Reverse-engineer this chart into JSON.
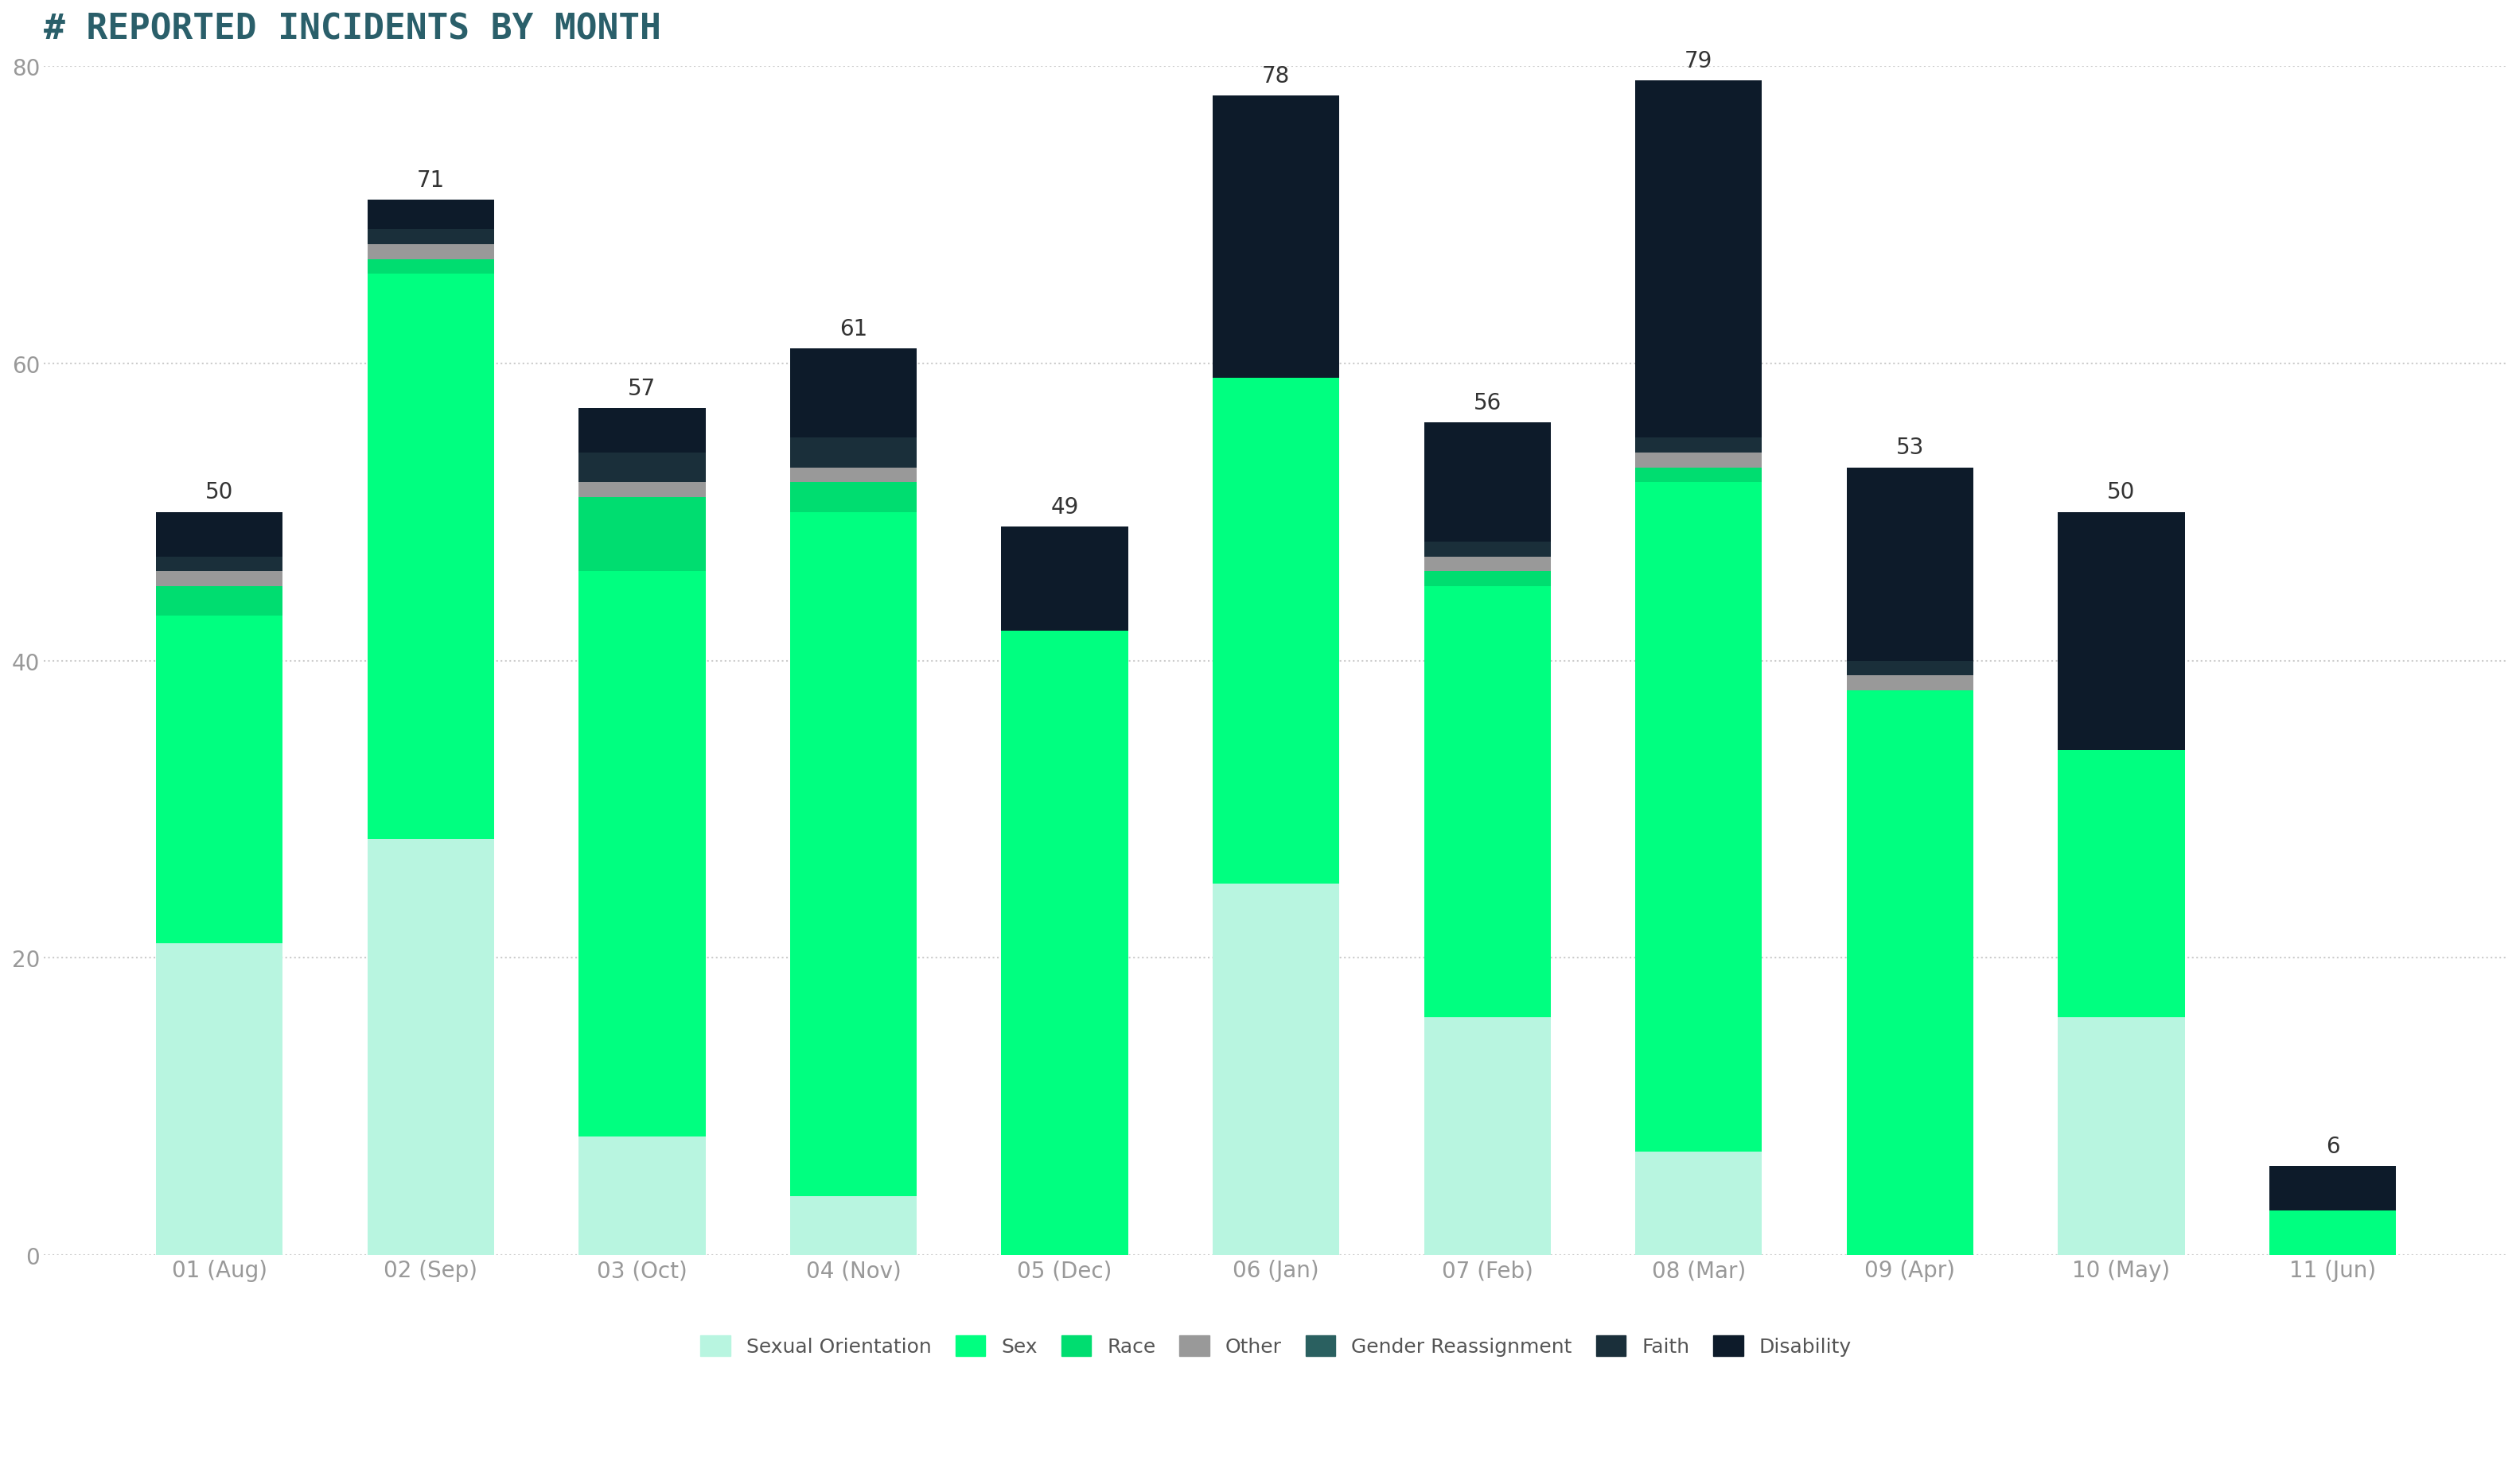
{
  "title": "# REPORTED INCIDENTS BY MONTH",
  "categories": [
    "01 (Aug)",
    "02 (Sep)",
    "03 (Oct)",
    "04 (Nov)",
    "05 (Dec)",
    "06 (Jan)",
    "07 (Feb)",
    "08 (Mar)",
    "09 (Apr)",
    "10 (May)",
    "11 (Jun)"
  ],
  "totals": [
    50,
    71,
    57,
    61,
    49,
    78,
    56,
    79,
    53,
    50,
    6
  ],
  "series": {
    "Sexual Orientation": [
      21,
      28,
      8,
      4,
      0,
      25,
      16,
      7,
      0,
      16,
      0
    ],
    "Sex": [
      22,
      38,
      38,
      46,
      42,
      34,
      29,
      45,
      38,
      18,
      3
    ],
    "Race": [
      2,
      1,
      5,
      2,
      0,
      0,
      1,
      1,
      0,
      0,
      0
    ],
    "Other": [
      1,
      1,
      1,
      1,
      0,
      0,
      1,
      1,
      1,
      0,
      0
    ],
    "Gender Reassignment": [
      0,
      0,
      0,
      0,
      0,
      0,
      0,
      0,
      0,
      0,
      0
    ],
    "Faith": [
      1,
      1,
      2,
      2,
      0,
      0,
      1,
      1,
      1,
      0,
      0
    ],
    "Disability": [
      3,
      2,
      3,
      6,
      7,
      19,
      8,
      24,
      13,
      16,
      3
    ]
  },
  "colors": {
    "Sexual Orientation": "#b8f5e0",
    "Sex": "#00ff80",
    "Race": "#00dd70",
    "Other": "#999999",
    "Gender Reassignment": "#2a6060",
    "Faith": "#1a2f3a",
    "Disability": "#0d1b2a"
  },
  "legend_order": [
    "Sexual Orientation",
    "Sex",
    "Race",
    "Other",
    "Gender Reassignment",
    "Faith",
    "Disability"
  ],
  "ylim": [
    0,
    80
  ],
  "yticks": [
    0,
    20,
    40,
    60,
    80
  ],
  "title_color": "#2a5f6a",
  "axis_color": "#999999",
  "grid_color": "#cccccc",
  "background_color": "#ffffff",
  "title_fontsize": 32,
  "tick_fontsize": 20,
  "label_fontsize": 18,
  "annotation_fontsize": 20
}
